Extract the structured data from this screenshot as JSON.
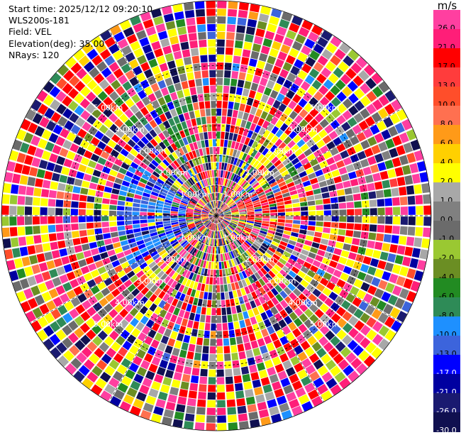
{
  "header": {
    "start_time": "Start time: 2025/12/12 09:20:10",
    "instrument": "WLS200s-181",
    "field": "Field: VEL",
    "elevation": "Elevation(deg): 35.00",
    "nrays": "NRays: 120"
  },
  "colorbar": {
    "unit": "m/s",
    "levels": [
      {
        "label": "26.0",
        "color": "#ff3fa0"
      },
      {
        "label": "21.0",
        "color": "#ff1e78"
      },
      {
        "label": "17.0",
        "color": "#ff0000"
      },
      {
        "label": "13.0",
        "color": "#ff3c3c"
      },
      {
        "label": "10.0",
        "color": "#ff4e2a"
      },
      {
        "label": "8.0",
        "color": "#ff7050"
      },
      {
        "label": "6.0",
        "color": "#ff9a18"
      },
      {
        "label": "4.0",
        "color": "#ffd000"
      },
      {
        "label": "2.0",
        "color": "#ffff00"
      },
      {
        "label": "1.0",
        "color": "#a8a8a8"
      },
      {
        "label": "0.0",
        "color": "#808080"
      },
      {
        "label": "-1.0",
        "color": "#6b6b6b"
      },
      {
        "label": "-2.0",
        "color": "#9ac832"
      },
      {
        "label": "-4.0",
        "color": "#6b8e23"
      },
      {
        "label": "-6.0",
        "color": "#228b22"
      },
      {
        "label": "-8.0",
        "color": "#2e8b57"
      },
      {
        "label": "-10.0",
        "color": "#1e90ff"
      },
      {
        "label": "-13.0",
        "color": "#3c64dc"
      },
      {
        "label": "-17.0",
        "color": "#0000ff"
      },
      {
        "label": "-21.0",
        "color": "#0000a0"
      },
      {
        "label": "-26.0",
        "color": "#1a1a70"
      },
      {
        "label": "-30.0",
        "color": "#101050"
      }
    ]
  },
  "chart_data": {
    "type": "heatmap",
    "projection": "polar PPI",
    "field": "VEL",
    "units": "m/s",
    "range_rings_km": [
      1,
      2,
      3,
      4,
      5
    ],
    "ring_labels": [
      "1.00km",
      "2.00km",
      "3.00km",
      "4.00km",
      "5.00km"
    ],
    "max_range_km": 7.1,
    "nrays": 120,
    "range_gates": 28,
    "spoke_angles_deg": [
      0,
      30,
      60,
      90,
      120,
      150,
      180,
      210,
      240,
      270,
      300,
      330
    ],
    "grid": true,
    "colorbar_position": "right",
    "value_range": [
      -30,
      30
    ]
  }
}
